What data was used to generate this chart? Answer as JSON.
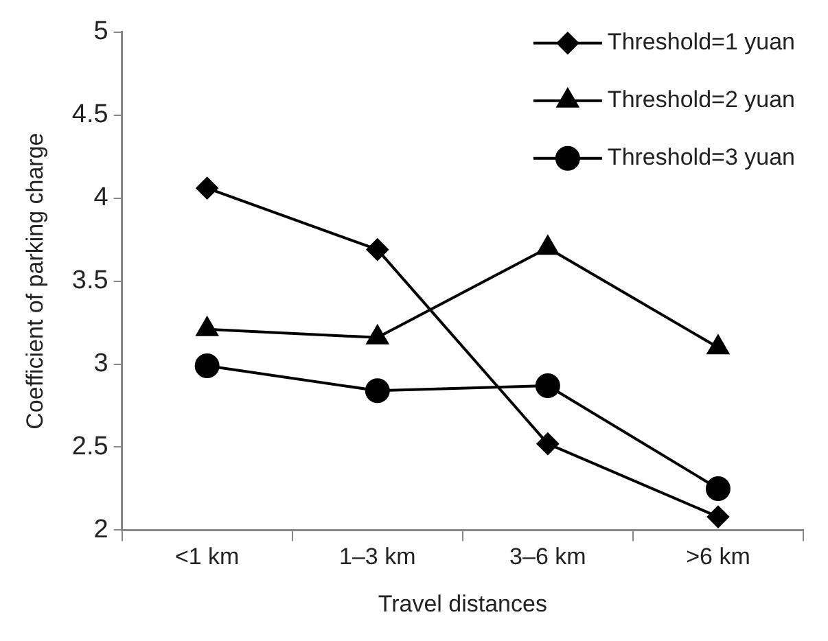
{
  "chart_data": {
    "type": "line",
    "xlabel": "Travel distances",
    "ylabel": "Coefficient of parking charge",
    "categories": [
      "<1 km",
      "1–3 km",
      "3–6 km",
      ">6 km"
    ],
    "series": [
      {
        "name": "Threshold=1 yuan",
        "color": "#000000",
        "marker": "diamond",
        "values": [
          4.06,
          3.69,
          2.52,
          2.08
        ]
      },
      {
        "name": "Threshold=2 yuan",
        "color": "#000000",
        "marker": "triangle",
        "values": [
          3.21,
          3.16,
          3.7,
          3.1
        ]
      },
      {
        "name": "Threshold=3 yuan",
        "color": "#000000",
        "marker": "circle",
        "values": [
          2.99,
          2.84,
          2.87,
          2.25
        ]
      }
    ],
    "ylim": [
      2,
      5
    ],
    "yticks": [
      2,
      2.5,
      3,
      3.5,
      4,
      4.5,
      5
    ],
    "grid": false,
    "legend": "top right",
    "line_style": "solid"
  }
}
